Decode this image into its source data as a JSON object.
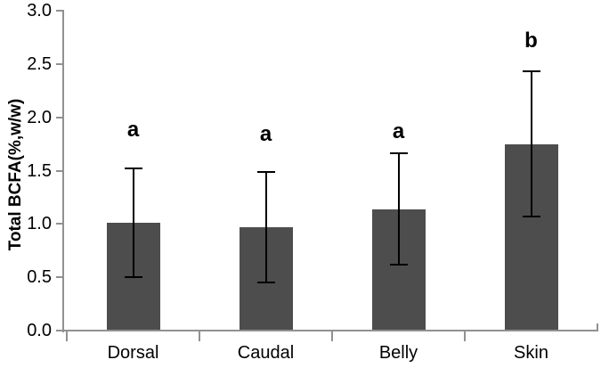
{
  "chart_data": {
    "type": "bar",
    "ylabel": "Total BCFA(%,w/w)",
    "xlabel": "",
    "categories": [
      "Dorsal",
      "Caudal",
      "Belly",
      "Skin"
    ],
    "values": [
      1.01,
      0.97,
      1.14,
      1.75
    ],
    "errors": [
      0.51,
      0.52,
      0.52,
      0.68
    ],
    "sig_letters": [
      "a",
      "a",
      "a",
      "b"
    ],
    "sig_letter_y": [
      1.88,
      1.84,
      1.86,
      2.72
    ],
    "ylim": [
      0,
      3
    ],
    "ytick_labels": [
      "0.0",
      "0.5",
      "1.0",
      "1.5",
      "2.0",
      "2.5",
      "3.0"
    ],
    "grid": false,
    "bar_color": "#4d4d4d",
    "error_color": "#000000",
    "axis_color": "#919191",
    "text_color": "#000000"
  }
}
